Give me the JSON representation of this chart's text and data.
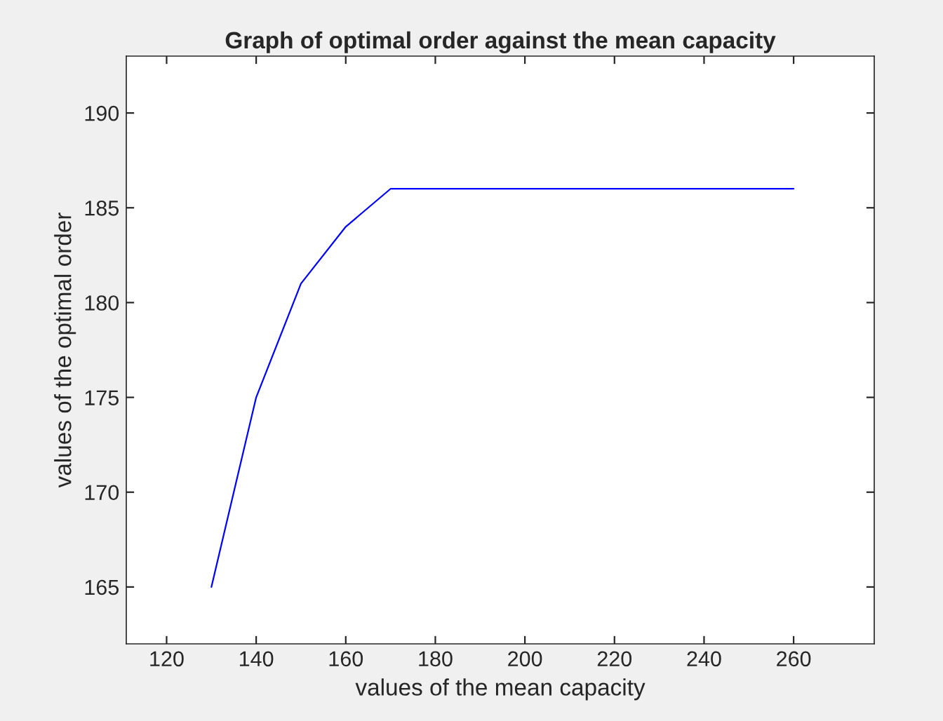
{
  "chart_data": {
    "type": "line",
    "title": "Graph of optimal order against the mean capacity",
    "xlabel": "values of the mean capacity",
    "ylabel": "values of the optimal order",
    "x": [
      130,
      140,
      150,
      160,
      170,
      180,
      190,
      200,
      210,
      220,
      230,
      240,
      250,
      260
    ],
    "series": [
      {
        "color": "#0000ff",
        "values": [
          165,
          175,
          181,
          184,
          186,
          186,
          186,
          186,
          186,
          186,
          186,
          186,
          186,
          186
        ]
      }
    ],
    "xlim": [
      111,
      278
    ],
    "ylim": [
      162,
      193
    ],
    "xticks": [
      120,
      140,
      160,
      180,
      200,
      220,
      240,
      260
    ],
    "yticks": [
      165,
      170,
      175,
      180,
      185,
      190
    ],
    "grid": false,
    "marker": "none",
    "line_style": "solid"
  }
}
